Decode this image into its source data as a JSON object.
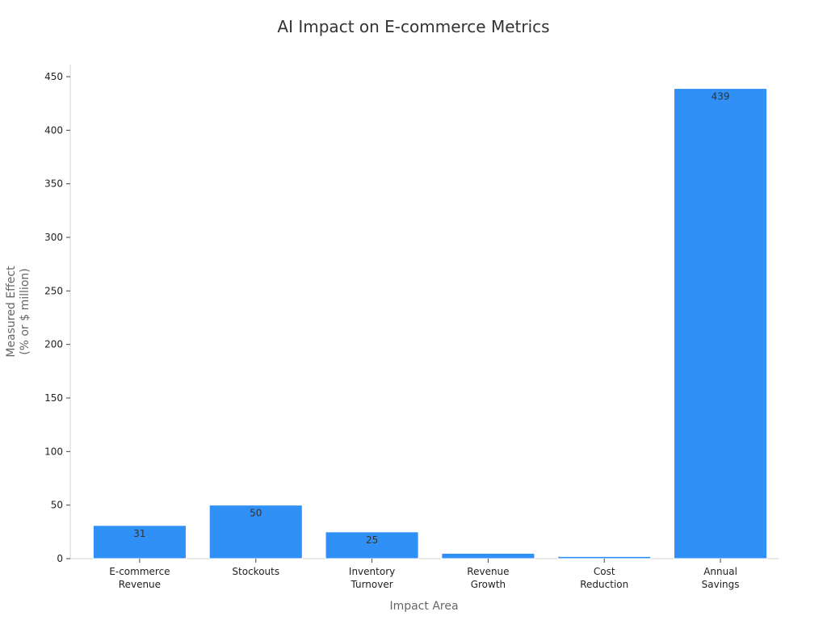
{
  "chart_data": {
    "type": "bar",
    "title": "AI Impact on E-commerce Metrics",
    "xlabel": "Impact Area",
    "ylabel": [
      "Measured Effect",
      "(% or $ million)"
    ],
    "categories": [
      [
        "E-commerce",
        "Revenue"
      ],
      [
        "Stockouts"
      ],
      [
        "Inventory",
        "Turnover"
      ],
      [
        "Revenue",
        "Growth"
      ],
      [
        "Cost",
        "Reduction"
      ],
      [
        "Annual",
        "Savings"
      ]
    ],
    "values": [
      31,
      50,
      25,
      5,
      2,
      439
    ],
    "data_labels": [
      "31",
      "50",
      "25",
      "",
      "",
      "439"
    ],
    "ylim": [
      0,
      460
    ],
    "yticks": [
      0,
      50,
      100,
      150,
      200,
      250,
      300,
      350,
      400,
      450
    ],
    "grid": false,
    "legend": "none",
    "bar_color": "#3090F5",
    "bar_edge_color": "#ffffff"
  }
}
